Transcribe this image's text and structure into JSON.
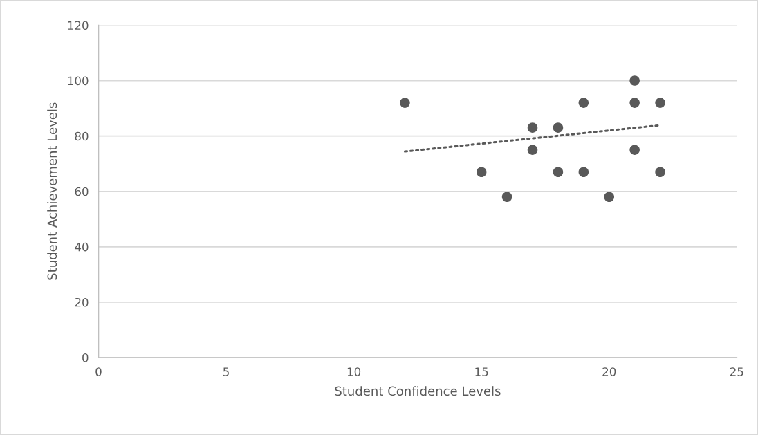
{
  "chart_data": {
    "type": "scatter",
    "xlabel": "Student Confidence Levels",
    "ylabel": "Student Achievement Levels",
    "xlim": [
      0,
      25
    ],
    "xticks": [
      0,
      5,
      10,
      15,
      20,
      25
    ],
    "ylim": [
      0,
      120
    ],
    "yticks": [
      0,
      20,
      40,
      60,
      80,
      100,
      120
    ],
    "grid": "y",
    "marker": "circle",
    "series": [
      {
        "color": "#595959",
        "x": [
          12,
          15,
          16,
          17,
          17,
          18,
          18,
          19,
          19,
          20,
          21,
          21,
          21,
          22,
          22
        ],
        "values": [
          92,
          67,
          58,
          83,
          75,
          83,
          67,
          92,
          67,
          58,
          100,
          92,
          75,
          92,
          67
        ]
      },
      {
        "type": "line",
        "color": "#595959",
        "line_style": "dotted",
        "marker": "none",
        "x": [
          12,
          22
        ],
        "values": [
          74.4,
          83.9
        ]
      }
    ]
  }
}
